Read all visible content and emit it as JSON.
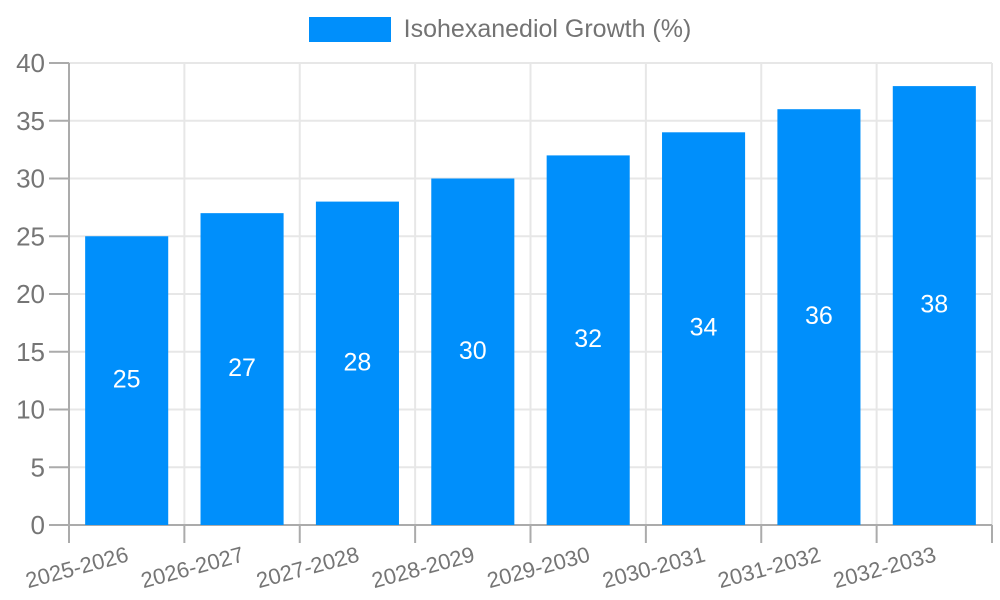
{
  "legend": {
    "label": "Isohexanediol Growth (%)"
  },
  "chart_data": {
    "type": "bar",
    "title": "",
    "categories": [
      "2025-2026",
      "2026-2027",
      "2027-2028",
      "2028-2029",
      "2029-2030",
      "2030-2031",
      "2031-2032",
      "2032-2033"
    ],
    "series": [
      {
        "name": "Isohexanediol Growth (%)",
        "values": [
          25,
          27,
          28,
          30,
          32,
          34,
          36,
          38
        ]
      }
    ],
    "value_labels": [
      "25",
      "27",
      "28",
      "30",
      "32",
      "34",
      "36",
      "38"
    ],
    "yticks": [
      0,
      5,
      10,
      15,
      20,
      25,
      30,
      35,
      40
    ],
    "ylim": [
      0,
      40
    ],
    "ytick_step": 5,
    "xlabel": "",
    "ylabel": "",
    "grid": true,
    "legend_position": "top",
    "x_label_rotation_deg": -15,
    "colors": {
      "bar": "#008FFB",
      "grid": "#e7e7e7",
      "axis": "#ababab",
      "tick_label": "#757575",
      "value_label": "#ffffff",
      "legend_text": "#737373"
    }
  }
}
